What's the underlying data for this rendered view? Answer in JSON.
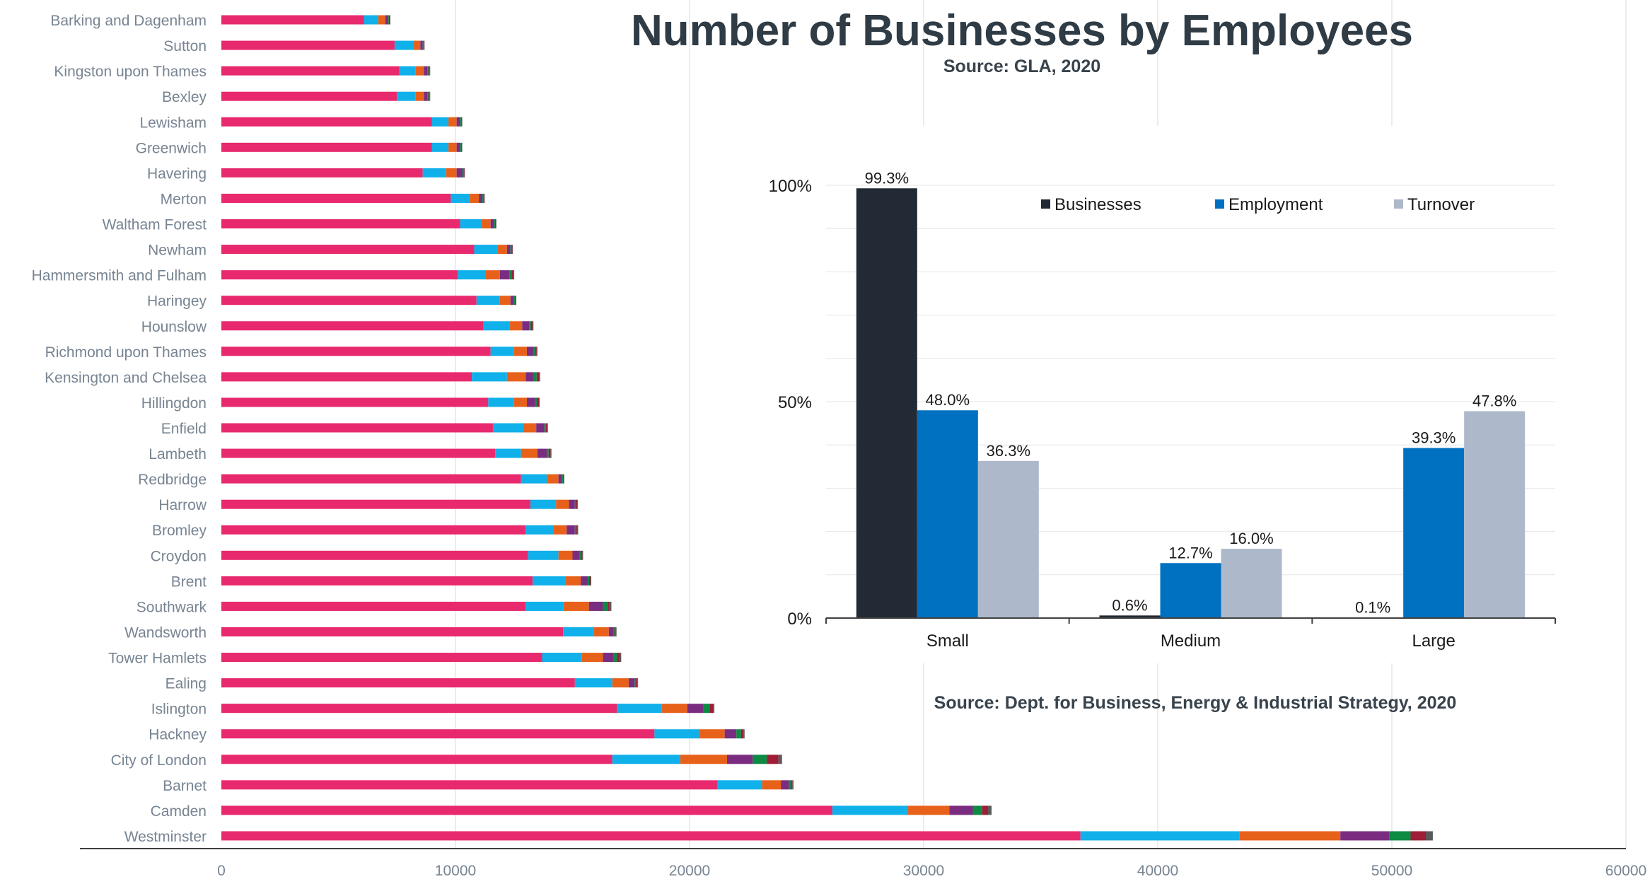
{
  "title": "Number of Businesses by Employees",
  "subtitle": "Source: GLA, 2020",
  "source_note": "Source: Dept. for Business, Energy & Industrial Strategy, 2020",
  "colors": {
    "seg1": "#e8296e",
    "seg2": "#10b1ea",
    "seg3": "#e8611b",
    "seg4": "#7a2d80",
    "seg5": "#0d8a43",
    "seg6": "#9e1d37",
    "seg7": "#5a5a5a",
    "businesses": "#222a35",
    "employment": "#0070c0",
    "turnover": "#adb9ca",
    "axis_text": "#778492",
    "gridline": "#d9d9d9"
  },
  "chart_data": [
    {
      "type": "bar",
      "orientation": "horizontal",
      "stacked": true,
      "legend": "none",
      "grid": true,
      "xlim": [
        0,
        60000
      ],
      "x_ticks": [
        "0",
        "10000",
        "20000",
        "30000",
        "40000",
        "50000",
        "60000"
      ],
      "categories": [
        "Barking and Dagenham",
        "Sutton",
        "Kingston upon Thames",
        "Bexley",
        "Lewisham",
        "Greenwich",
        "Havering",
        "Merton",
        "Waltham Forest",
        "Newham",
        "Hammersmith and Fulham",
        "Haringey",
        "Hounslow",
        "Richmond upon Thames",
        "Kensington and Chelsea",
        "Hillingdon",
        "Enfield",
        "Lambeth",
        "Redbridge",
        "Harrow",
        "Bromley",
        "Croydon",
        "Brent",
        "Southwark",
        "Wandsworth",
        "Tower Hamlets",
        "Ealing",
        "Islington",
        "Hackney",
        "City of London",
        "Barnet",
        "Camden",
        "Westminster"
      ],
      "series": [
        {
          "values": [
            6100,
            7400,
            7600,
            7500,
            9000,
            9000,
            8600,
            9800,
            10200,
            10800,
            10100,
            10900,
            11200,
            11500,
            10700,
            11400,
            11600,
            11700,
            12800,
            13200,
            13000,
            13100,
            13300,
            13000,
            14600,
            13700,
            15100,
            16900,
            18500,
            16700,
            21200,
            26100,
            36700
          ]
        },
        {
          "values": [
            600,
            800,
            700,
            800,
            700,
            700,
            1000,
            800,
            900,
            1000,
            1200,
            1000,
            1100,
            1000,
            1500,
            1100,
            1300,
            1100,
            1100,
            1100,
            1200,
            1300,
            1400,
            1600,
            1300,
            1700,
            1600,
            1900,
            1900,
            2900,
            1900,
            3200,
            6800
          ]
        },
        {
          "values": [
            300,
            300,
            350,
            350,
            350,
            350,
            450,
            400,
            400,
            400,
            600,
            450,
            550,
            550,
            800,
            550,
            550,
            700,
            500,
            550,
            550,
            600,
            650,
            1100,
            650,
            900,
            700,
            1100,
            1100,
            2000,
            800,
            1800,
            4300
          ]
        },
        {
          "values": [
            100,
            100,
            150,
            150,
            150,
            150,
            250,
            150,
            150,
            150,
            400,
            150,
            300,
            300,
            350,
            350,
            350,
            400,
            150,
            250,
            350,
            300,
            300,
            600,
            200,
            450,
            250,
            700,
            500,
            1100,
            350,
            1000,
            2100
          ]
        },
        {
          "values": [
            50,
            30,
            50,
            50,
            40,
            40,
            40,
            40,
            40,
            40,
            100,
            40,
            70,
            60,
            120,
            90,
            60,
            80,
            40,
            50,
            60,
            60,
            60,
            200,
            50,
            150,
            60,
            250,
            200,
            600,
            80,
            400,
            900
          ]
        },
        {
          "values": [
            40,
            30,
            40,
            40,
            30,
            30,
            40,
            40,
            40,
            40,
            60,
            40,
            70,
            60,
            100,
            80,
            60,
            80,
            40,
            50,
            50,
            60,
            60,
            80,
            50,
            120,
            60,
            150,
            100,
            500,
            60,
            250,
            650
          ]
        },
        {
          "values": [
            30,
            20,
            30,
            30,
            20,
            20,
            20,
            20,
            20,
            20,
            50,
            20,
            40,
            30,
            50,
            30,
            30,
            40,
            20,
            30,
            30,
            30,
            30,
            80,
            30,
            60,
            30,
            60,
            50,
            150,
            50,
            150,
            300
          ]
        }
      ]
    },
    {
      "type": "bar",
      "legend": "top-right",
      "grid": true,
      "ylim": [
        0,
        100
      ],
      "y_ticks": [
        "0%",
        "50%",
        "100%"
      ],
      "categories": [
        "Small",
        "Medium",
        "Large"
      ],
      "series": [
        {
          "name": "Businesses",
          "values": [
            99.3,
            0.6,
            0.1
          ],
          "labels": [
            "99.3%",
            "0.6%",
            "0.1%"
          ]
        },
        {
          "name": "Employment",
          "values": [
            48.0,
            12.7,
            39.3
          ],
          "labels": [
            "48.0%",
            "12.7%",
            "39.3%"
          ]
        },
        {
          "name": "Turnover",
          "values": [
            36.3,
            16.0,
            47.8
          ],
          "labels": [
            "36.3%",
            "16.0%",
            "47.8%"
          ]
        }
      ]
    }
  ]
}
